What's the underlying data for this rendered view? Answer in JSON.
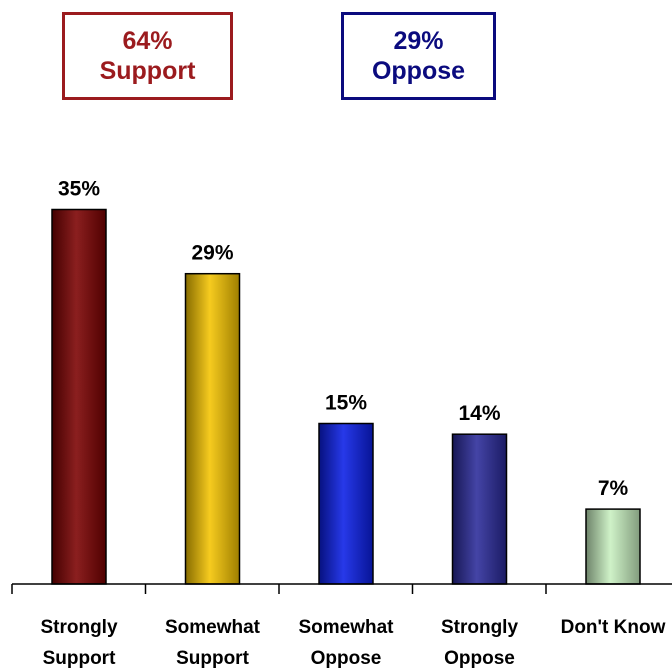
{
  "summary": {
    "support": {
      "value": "64%",
      "label": "Support",
      "color": "#9B1B1E"
    },
    "oppose": {
      "value": "29%",
      "label": "Oppose",
      "color": "#0B0B7E"
    }
  },
  "chart_data": {
    "type": "bar",
    "title": "",
    "xlabel": "",
    "ylabel": "",
    "ylim": [
      0,
      40
    ],
    "grid": false,
    "categories": [
      [
        "Strongly",
        "Support"
      ],
      [
        "Somewhat",
        "Support"
      ],
      [
        "Somewhat",
        "Oppose"
      ],
      [
        "Strongly",
        "Oppose"
      ],
      [
        "Don't Know"
      ]
    ],
    "values": [
      35,
      29,
      15,
      14,
      7
    ],
    "value_labels": [
      "35%",
      "29%",
      "15%",
      "14%",
      "7%"
    ],
    "colors": [
      "#7B0000",
      "#F5C400",
      "#0A1EE6",
      "#2A2A9A",
      "#C8F0C0"
    ]
  }
}
